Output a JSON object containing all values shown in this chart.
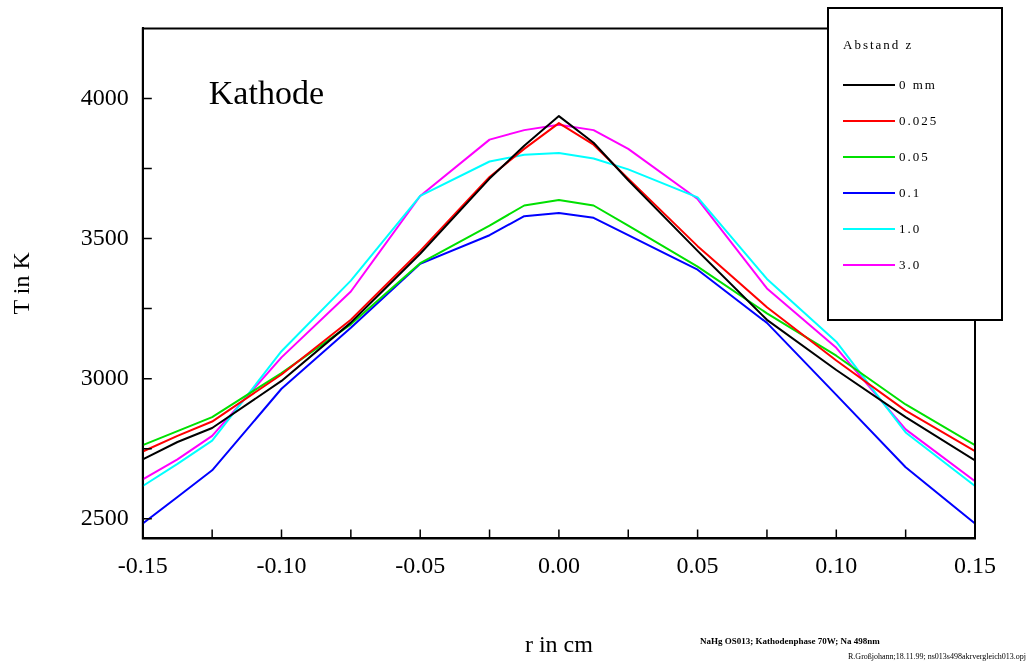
{
  "chart_data": {
    "type": "line",
    "xlabel": "r in cm",
    "ylabel": "T in K",
    "legend_title": "Abstand z",
    "legend": "top right",
    "marker": "none",
    "line_style": "solid",
    "x": [
      -0.15,
      -0.1375,
      -0.125,
      -0.1,
      -0.075,
      -0.05,
      -0.025,
      -0.0125,
      0,
      0.0125,
      0.025,
      0.05,
      0.075,
      0.1,
      0.125,
      0.15
    ],
    "series": [
      {
        "name": "0 mm",
        "color": "#000000",
        "values": [
          2712,
          2774,
          2824,
          2992,
          3200,
          3446,
          3714,
          3831,
          3937,
          3842,
          3708,
          3456,
          3210,
          3031,
          2863,
          2708
        ]
      },
      {
        "name": "0.025",
        "color": "#ff0000",
        "values": [
          2740,
          2796,
          2847,
          3015,
          3210,
          3456,
          3720,
          3820,
          3912,
          3835,
          3714,
          3473,
          3255,
          3065,
          2886,
          2741
        ]
      },
      {
        "name": "0.05",
        "color": "#00e000",
        "values": [
          2763,
          2813,
          2863,
          3020,
          3194,
          3412,
          3546,
          3618,
          3638,
          3618,
          3546,
          3400,
          3233,
          3082,
          2908,
          2763
        ]
      },
      {
        "name": "0.1",
        "color": "#0000ff",
        "values": [
          2483,
          2578,
          2673,
          2964,
          3182,
          3410,
          3512,
          3580,
          3591,
          3574,
          3512,
          3389,
          3199,
          2942,
          2684,
          2483
        ]
      },
      {
        "name": "1.0",
        "color": "#00ffff",
        "values": [
          2617,
          2696,
          2779,
          3098,
          3350,
          3652,
          3775,
          3799,
          3805,
          3786,
          3747,
          3647,
          3356,
          3132,
          2808,
          2617
        ]
      },
      {
        "name": "3.0",
        "color": "#ff00ff",
        "values": [
          2641,
          2712,
          2796,
          3076,
          3311,
          3652,
          3853,
          3887,
          3906,
          3887,
          3820,
          3641,
          3322,
          3110,
          2819,
          2634
        ]
      }
    ],
    "xlim": [
      -0.15,
      0.15
    ],
    "xticks": [
      {
        "value": -0.15,
        "label": "-0.15"
      },
      {
        "value": -0.125,
        "label": null
      },
      {
        "value": -0.1,
        "label": "-0.10"
      },
      {
        "value": -0.075,
        "label": null
      },
      {
        "value": -0.05,
        "label": "-0.05"
      },
      {
        "value": -0.025,
        "label": null
      },
      {
        "value": 0,
        "label": "0.00"
      },
      {
        "value": 0.025,
        "label": null
      },
      {
        "value": 0.05,
        "label": "0.05"
      },
      {
        "value": 0.075,
        "label": null
      },
      {
        "value": 0.1,
        "label": "0.10"
      },
      {
        "value": 0.125,
        "label": null
      },
      {
        "value": 0.15,
        "label": "0.15"
      }
    ],
    "ylim": [
      2430,
      4250
    ],
    "yticks": [
      2500,
      {
        "value": 2750,
        "label": null
      },
      3000,
      {
        "value": 3250,
        "label": null
      },
      3500,
      {
        "value": 3750,
        "label": null
      },
      4000
    ],
    "annotations": [
      "Kathode",
      "NaHg OS013; Kathodenphase 70W; Na 498nm",
      "R.Großjohann;18.11.99; ns013s498akrvergleich013.opj"
    ]
  }
}
